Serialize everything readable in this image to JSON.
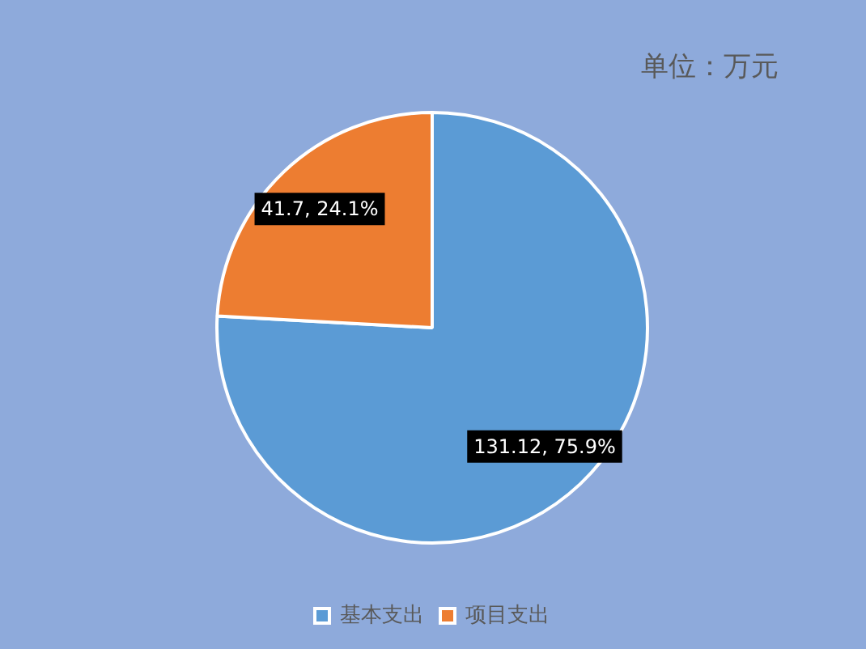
{
  "chart_data": {
    "type": "pie",
    "categories": [
      "基本支出",
      "项目支出"
    ],
    "values": [
      131.12,
      41.7
    ],
    "colors": [
      "#5b9bd5",
      "#ed7d31"
    ],
    "value_labels": [
      "131.12, 75.9%",
      "41.7, 24.1%"
    ],
    "legend": "bottom",
    "annotations": [
      "单位：万元"
    ]
  }
}
